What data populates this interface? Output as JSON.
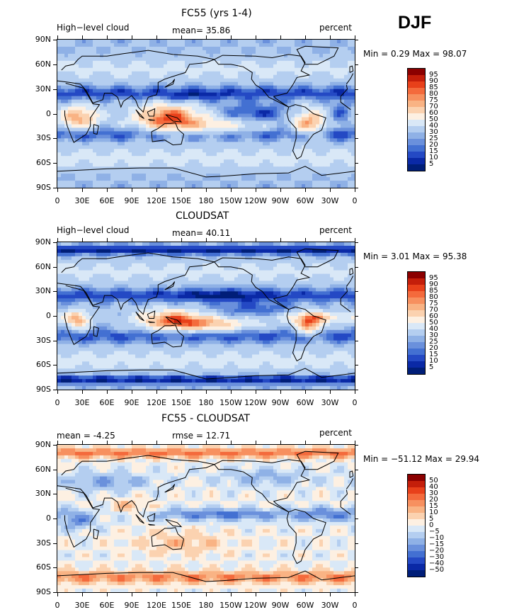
{
  "season": "DJF",
  "panels": [
    {
      "id": "model",
      "title": "FC55 (yrs 1-4)",
      "left_label": "High−level cloud",
      "center_label": "mean=  35.86",
      "right_label": "percent",
      "min_max": "Min =    0.29 Max =   98.07"
    },
    {
      "id": "obs",
      "title": "CLOUDSAT",
      "left_label": "High−level cloud",
      "center_label": "mean=  40.11",
      "right_label": "percent",
      "min_max": "Min =    3.01 Max =   95.38"
    },
    {
      "id": "diff",
      "title": "FC55 - CLOUDSAT",
      "left_label": "mean =   -4.25",
      "center_label": "rmse =   12.71",
      "right_label": "percent",
      "min_max": "Min = −51.12 Max =   29.94"
    }
  ],
  "lat_ticks": [
    "90N",
    "60N",
    "30N",
    "0",
    "30S",
    "60S",
    "90S"
  ],
  "lon_ticks": [
    "0",
    "30E",
    "60E",
    "90E",
    "120E",
    "150E",
    "180",
    "150W",
    "120W",
    "90W",
    "60W",
    "30W",
    "0"
  ],
  "colorbar_abs": {
    "labels": [
      "95",
      "90",
      "85",
      "80",
      "75",
      "70",
      "60",
      "50",
      "40",
      "30",
      "25",
      "20",
      "15",
      "10",
      "5"
    ],
    "colors": [
      "#8b0000",
      "#c41e0a",
      "#e8401a",
      "#f46a3c",
      "#f7905f",
      "#f9b384",
      "#fbd2b0",
      "#fdf0e2",
      "#d9e8f7",
      "#b4cef0",
      "#8fb1e6",
      "#6a90dc",
      "#4370d2",
      "#2449c4",
      "#0a29a6",
      "#001e78"
    ]
  },
  "colorbar_diff": {
    "labels": [
      "50",
      "40",
      "30",
      "20",
      "15",
      "10",
      "5",
      "0",
      "−5",
      "−10",
      "−15",
      "−20",
      "−30",
      "−40",
      "−50"
    ],
    "colors": [
      "#8b0000",
      "#c41e0a",
      "#e8401a",
      "#f46a3c",
      "#f7905f",
      "#f9b384",
      "#fbd2b0",
      "#fdf0e2",
      "#d9e8f7",
      "#b4cef0",
      "#8fb1e6",
      "#6a90dc",
      "#4370d2",
      "#2449c4",
      "#0a29a6",
      "#001e78"
    ]
  }
}
